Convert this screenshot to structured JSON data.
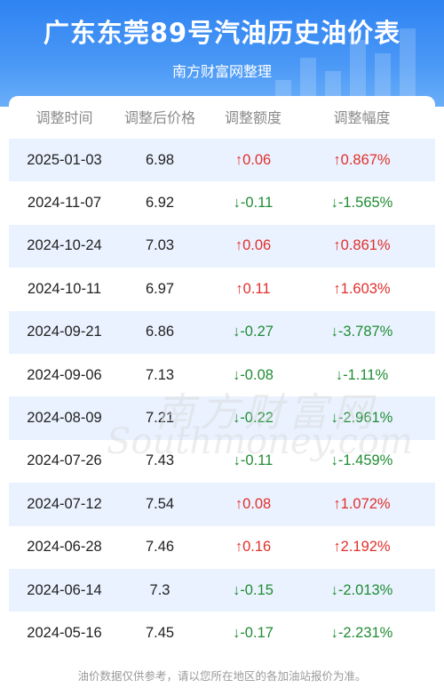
{
  "header": {
    "title": "广东东莞89号汽油历史油价表",
    "subtitle": "南方财富网整理"
  },
  "table": {
    "columns": [
      "调整时间",
      "调整后价格",
      "调整额度",
      "调整幅度"
    ],
    "rows": [
      {
        "date": "2025-01-03",
        "price": "6.98",
        "change": "↑0.06",
        "pct": "↑0.867%",
        "dir": "up"
      },
      {
        "date": "2024-11-07",
        "price": "6.92",
        "change": "↓-0.11",
        "pct": "↓-1.565%",
        "dir": "down"
      },
      {
        "date": "2024-10-24",
        "price": "7.03",
        "change": "↑0.06",
        "pct": "↑0.861%",
        "dir": "up"
      },
      {
        "date": "2024-10-11",
        "price": "6.97",
        "change": "↑0.11",
        "pct": "↑1.603%",
        "dir": "up"
      },
      {
        "date": "2024-09-21",
        "price": "6.86",
        "change": "↓-0.27",
        "pct": "↓-3.787%",
        "dir": "down"
      },
      {
        "date": "2024-09-06",
        "price": "7.13",
        "change": "↓-0.08",
        "pct": "↓-1.11%",
        "dir": "down"
      },
      {
        "date": "2024-08-09",
        "price": "7.21",
        "change": "↓-0.22",
        "pct": "↓-2.961%",
        "dir": "down"
      },
      {
        "date": "2024-07-26",
        "price": "7.43",
        "change": "↓-0.11",
        "pct": "↓-1.459%",
        "dir": "down"
      },
      {
        "date": "2024-07-12",
        "price": "7.54",
        "change": "↑0.08",
        "pct": "↑1.072%",
        "dir": "up"
      },
      {
        "date": "2024-06-28",
        "price": "7.46",
        "change": "↑0.16",
        "pct": "↑2.192%",
        "dir": "up"
      },
      {
        "date": "2024-06-14",
        "price": "7.3",
        "change": "↓-0.15",
        "pct": "↓-2.013%",
        "dir": "down"
      },
      {
        "date": "2024-05-16",
        "price": "7.45",
        "change": "↓-0.17",
        "pct": "↓-2.231%",
        "dir": "down"
      }
    ]
  },
  "watermark": {
    "cn": "南方财富网",
    "en": "Southmoney.com"
  },
  "footer": {
    "note": "油价数据仅供参考，请以您所在地区的各加油站报价为准。"
  },
  "colors": {
    "header_blue": "#2f83f2",
    "row_shade": "#eaf2ff",
    "up": "#e0302c",
    "down": "#1f8c33"
  }
}
